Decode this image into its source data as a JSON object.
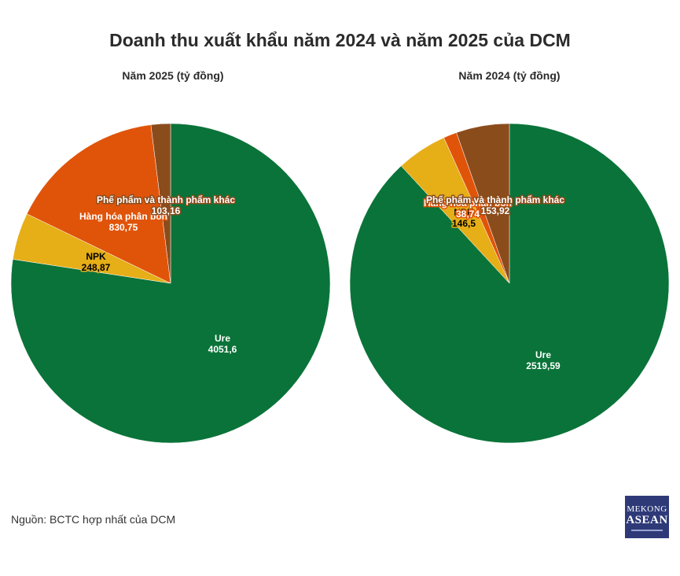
{
  "title": "Doanh thu xuất khẩu năm 2024 và năm 2025 của DCM",
  "source": "Nguồn: BCTC hợp nhất của DCM",
  "logo": {
    "line1": "MEKONG",
    "line2": "ASEAN"
  },
  "chart_data": [
    {
      "type": "pie",
      "title": "Năm 2025 (tỷ đồng)",
      "start_angle_deg": 0,
      "direction": "clockwise",
      "slices": [
        {
          "label": "Ure",
          "value": 4051.6,
          "display": "4051,6",
          "color": "#0a7339"
        },
        {
          "label": "NPK",
          "value": 248.87,
          "display": "248,87",
          "color": "#e6ae17"
        },
        {
          "label": "Hàng hóa phân bón",
          "value": 830.75,
          "display": "830,75",
          "color": "#e0540a"
        },
        {
          "label": "Phế phẩm và thành phẩm khác",
          "value": 103.16,
          "display": "103,16",
          "color": "#8b4c1c"
        }
      ]
    },
    {
      "type": "pie",
      "title": "Năm 2024 (tỷ đồng)",
      "start_angle_deg": 0,
      "direction": "clockwise",
      "slices": [
        {
          "label": "Ure",
          "value": 2519.59,
          "display": "2519,59",
          "color": "#0a7339"
        },
        {
          "label": "NPK",
          "value": 146.5,
          "display": "146,5",
          "color": "#e6ae17"
        },
        {
          "label": "Hàng hóa phân bón",
          "value": 38.74,
          "display": "38,74",
          "color": "#e0540a"
        },
        {
          "label": "Phế phẩm và thành phẩm khác",
          "value": 153.92,
          "display": "153,92",
          "color": "#8b4c1c"
        }
      ]
    }
  ]
}
